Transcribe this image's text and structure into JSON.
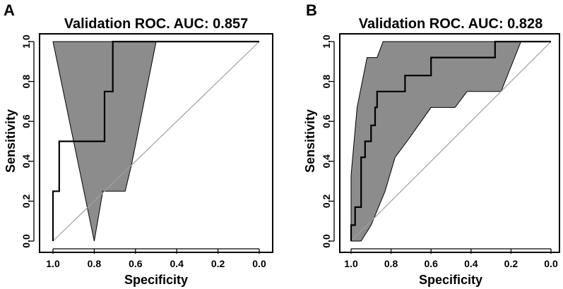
{
  "chart_data": [
    {
      "type": "line",
      "panel_label": "A",
      "title": "Validation ROC. AUC: 0.857",
      "xlabel": "Specificity",
      "ylabel": "Sensitivity",
      "xlim": [
        1.0,
        0.0
      ],
      "ylim": [
        0.0,
        1.0
      ],
      "x_ticks": [
        "1.0",
        "0.8",
        "0.6",
        "0.4",
        "0.2",
        "0.0"
      ],
      "y_ticks": [
        "0.0",
        "0.2",
        "0.4",
        "0.6",
        "0.8",
        "1.0"
      ],
      "grid": false,
      "colors": {
        "ci_fill": "#8c8c8c",
        "roc_line": "#000000",
        "diagonal": "#a0a0a0"
      },
      "diagonal": {
        "x": [
          1.0,
          0.0
        ],
        "y": [
          0.0,
          1.0
        ]
      },
      "series": [
        {
          "name": "ROC curve",
          "specificity": [
            1.0,
            1.0,
            0.97,
            0.97,
            0.75,
            0.75,
            0.71,
            0.71,
            0.0
          ],
          "sensitivity": [
            0.0,
            0.25,
            0.25,
            0.5,
            0.5,
            0.75,
            0.75,
            1.0,
            1.0
          ]
        },
        {
          "name": "CI upper bound",
          "specificity": [
            1.0,
            0.5,
            0.0
          ],
          "sensitivity": [
            1.0,
            1.0,
            1.0
          ]
        },
        {
          "name": "CI lower bound",
          "specificity": [
            0.8,
            0.8,
            0.76,
            0.76,
            0.65,
            0.62,
            0.5
          ],
          "sensitivity": [
            0.0,
            0.0,
            0.24,
            0.25,
            0.25,
            0.38,
            1.0
          ]
        }
      ]
    },
    {
      "type": "line",
      "panel_label": "B",
      "title": "Validation ROC. AUC: 0.828",
      "xlabel": "Specificity",
      "ylabel": "Sensitivity",
      "xlim": [
        1.0,
        0.0
      ],
      "ylim": [
        0.0,
        1.0
      ],
      "x_ticks": [
        "1.0",
        "0.8",
        "0.6",
        "0.4",
        "0.2",
        "0.0"
      ],
      "y_ticks": [
        "0.0",
        "0.2",
        "0.4",
        "0.6",
        "0.8",
        "1.0"
      ],
      "grid": false,
      "colors": {
        "ci_fill": "#8c8c8c",
        "roc_line": "#000000",
        "diagonal": "#a0a0a0"
      },
      "diagonal": {
        "x": [
          1.0,
          0.0
        ],
        "y": [
          0.0,
          1.0
        ]
      },
      "series": [
        {
          "name": "ROC curve",
          "specificity": [
            1.0,
            1.0,
            0.98,
            0.98,
            0.95,
            0.95,
            0.93,
            0.93,
            0.9,
            0.9,
            0.88,
            0.88,
            0.87,
            0.87,
            0.73,
            0.73,
            0.6,
            0.6,
            0.28,
            0.28,
            0.0
          ],
          "sensitivity": [
            0.0,
            0.08,
            0.08,
            0.17,
            0.17,
            0.42,
            0.42,
            0.5,
            0.5,
            0.58,
            0.58,
            0.67,
            0.67,
            0.75,
            0.75,
            0.83,
            0.83,
            0.92,
            0.92,
            1.0,
            1.0
          ]
        },
        {
          "name": "CI upper bound",
          "specificity": [
            1.0,
            1.0,
            0.97,
            0.92,
            0.87,
            0.84,
            0.8,
            0.5,
            0.15,
            0.0
          ],
          "sensitivity": [
            0.0,
            0.33,
            0.67,
            0.92,
            0.92,
            1.0,
            1.0,
            1.0,
            1.0,
            1.0
          ]
        },
        {
          "name": "CI lower bound",
          "specificity": [
            0.95,
            0.9,
            0.83,
            0.78,
            0.72,
            0.6,
            0.48,
            0.42,
            0.25,
            0.15
          ],
          "sensitivity": [
            0.0,
            0.08,
            0.25,
            0.42,
            0.5,
            0.67,
            0.67,
            0.75,
            0.75,
            1.0
          ]
        }
      ]
    }
  ]
}
